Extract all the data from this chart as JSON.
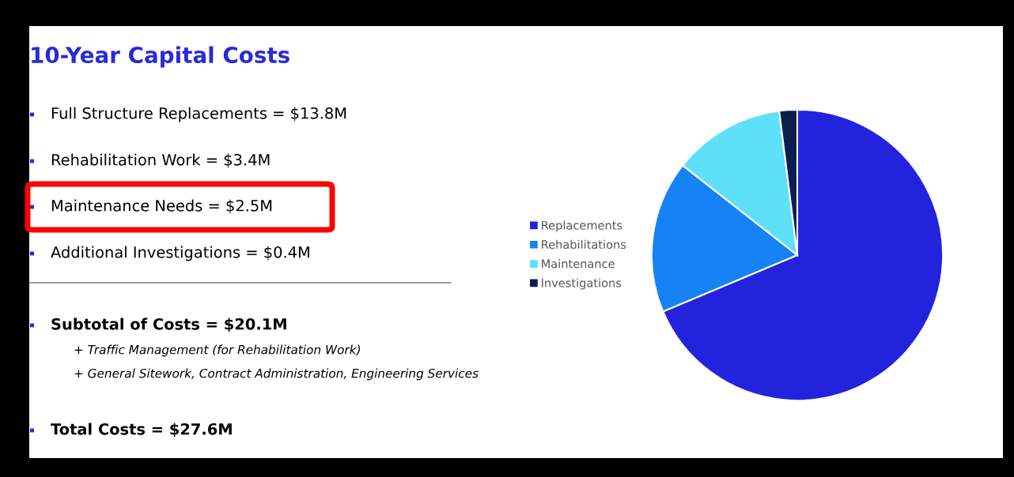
{
  "chart_data": {
    "type": "pie",
    "title": "10-Year Capital Costs",
    "categories": [
      "Replacements",
      "Rehabilitations",
      "Maintenance",
      "Investigations"
    ],
    "values": [
      68.66,
      16.92,
      12.44,
      1.98
    ],
    "colors": [
      "#2323dd",
      "#1682f5",
      "#5ee0fb",
      "#0b1f4f"
    ],
    "legend": "left",
    "marker": "square",
    "annotations": [
      "Full Structure Replacements = $13.8M",
      "Rehabilitation Work = $3.4M",
      "Maintenance Needs = $2.5M",
      "Additional Investigations = $0.4M",
      "Subtotal of Costs = $20.1M",
      "+ Traffic Management (for Rehabilitation Work)",
      "+ General Sitework, Contract Administration, Engineering Services",
      "Total Costs = $27.6M"
    ]
  }
}
